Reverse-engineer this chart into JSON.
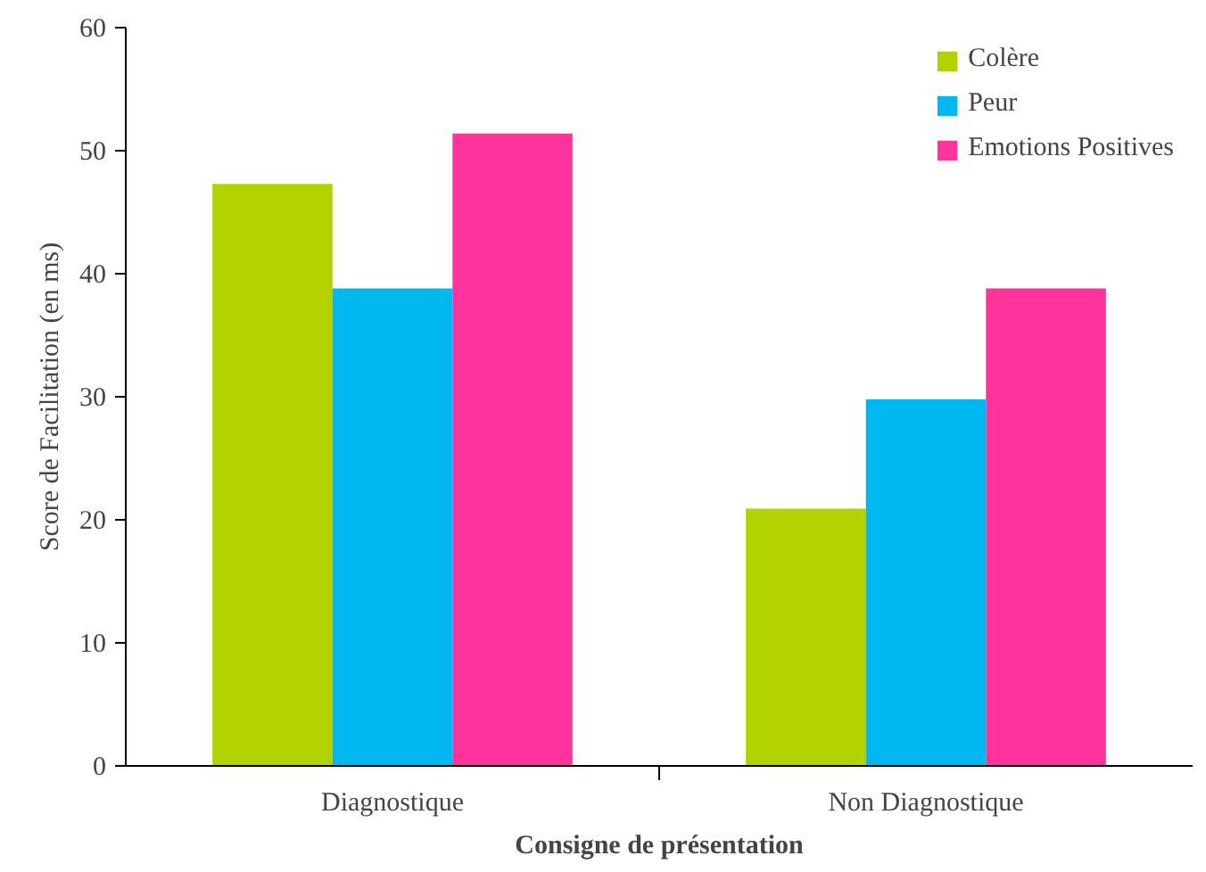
{
  "chart_data": {
    "type": "bar",
    "xlabel": "Consigne de présentation",
    "ylabel": "Score de Facilitation (en ms)",
    "categories": [
      "Diagnostique",
      "Non Diagnostique"
    ],
    "series": [
      {
        "name": "Colère",
        "color": "#b2d200",
        "values": [
          47.3,
          20.9
        ]
      },
      {
        "name": "Peur",
        "color": "#00b8f0",
        "values": [
          38.8,
          29.8
        ]
      },
      {
        "name": "Emotions Positives",
        "color": "#ff3399",
        "values": [
          51.4,
          38.8
        ]
      }
    ],
    "ylim": [
      0,
      60
    ],
    "yticks": [
      0,
      10,
      20,
      30,
      40,
      50,
      60
    ],
    "grid": false,
    "legend": "top right"
  }
}
